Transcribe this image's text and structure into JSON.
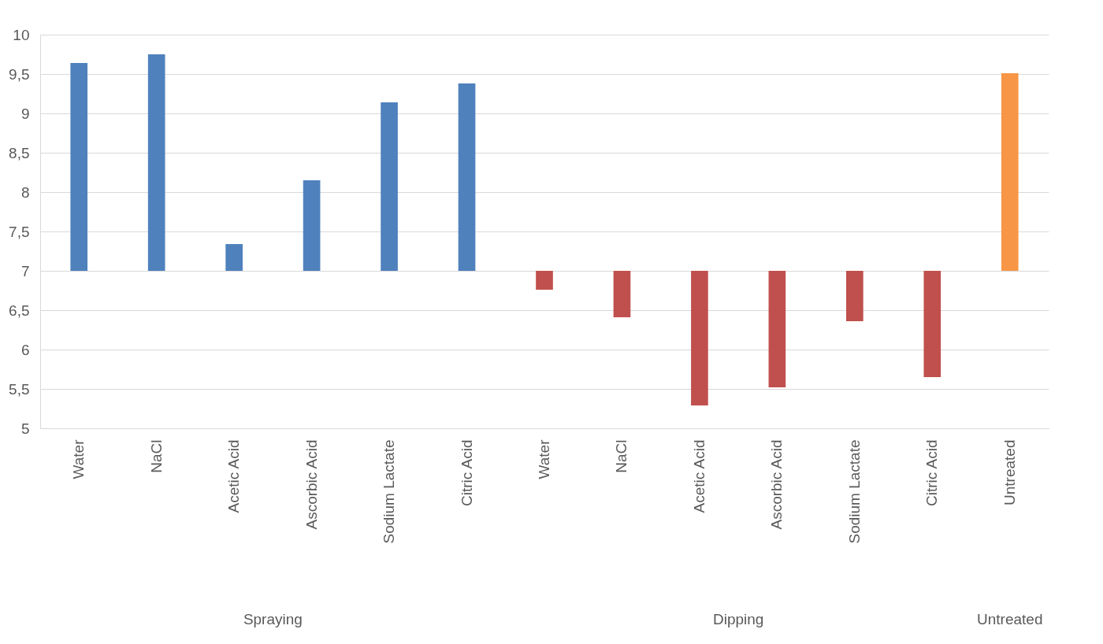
{
  "chart_data": {
    "type": "bar",
    "categories": [
      "Water",
      "NaCl",
      "Acetic Acid",
      "Ascorbic Acid",
      "Sodium Lactate",
      "Citric Acid",
      "Water",
      "NaCl",
      "Acetic Acid",
      "Ascorbic Acid",
      "Sodium Lactate",
      "Citric Acid",
      "Untreated"
    ],
    "base": [
      7,
      7,
      7,
      7,
      7,
      7,
      7,
      7,
      7,
      7,
      7,
      7,
      7
    ],
    "values": [
      2.64,
      2.75,
      0.34,
      1.15,
      2.14,
      2.38,
      -0.24,
      -0.59,
      -1.71,
      -1.48,
      -0.64,
      -1.35,
      2.51
    ],
    "colors": [
      "#4f81bd",
      "#4f81bd",
      "#4f81bd",
      "#4f81bd",
      "#4f81bd",
      "#4f81bd",
      "#c0504d",
      "#c0504d",
      "#c0504d",
      "#c0504d",
      "#c0504d",
      "#c0504d",
      "#f79646"
    ],
    "ylim": [
      5,
      10
    ],
    "yticks": [
      5,
      {
        "value": 5.5,
        "label": "5,5"
      },
      6,
      {
        "value": 6.5,
        "label": "6,5"
      },
      7,
      {
        "value": 7.5,
        "label": "7,5"
      },
      8,
      {
        "value": 8.5,
        "label": "8,5"
      },
      9,
      {
        "value": 9.5,
        "label": "9,5"
      },
      10
    ],
    "grid": "y",
    "annotations": [
      "Spraying",
      "Dipping",
      "Untreated"
    ]
  }
}
